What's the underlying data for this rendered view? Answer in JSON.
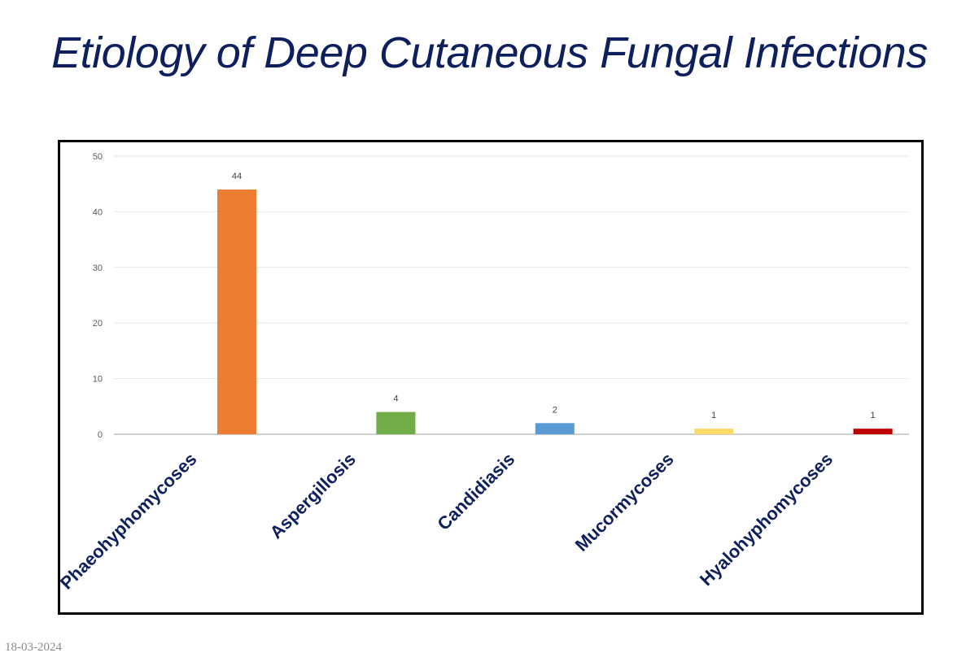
{
  "slide": {
    "title": "Etiology of Deep Cutaneous Fungal Infections",
    "date": "18-03-2024"
  },
  "chart_data": {
    "type": "bar",
    "categories": [
      "Phaeohyphomycoses",
      "Aspergillosis",
      "Candidiasis",
      "Mucormycoses",
      "Hyalohyphomycoses"
    ],
    "values": [
      44,
      4,
      2,
      1,
      1
    ],
    "colors": [
      "#ED7D31",
      "#70AD47",
      "#5B9BD5",
      "#FFD966",
      "#C00000"
    ],
    "data_labels": [
      "44",
      "4",
      "2",
      "1",
      "1"
    ],
    "ylim": [
      0,
      50
    ],
    "yticks": [
      0,
      10,
      20,
      30,
      40,
      50
    ],
    "grid": true,
    "title": "",
    "xlabel": "",
    "ylabel": "",
    "category_label_color": "#0d1f5c"
  }
}
